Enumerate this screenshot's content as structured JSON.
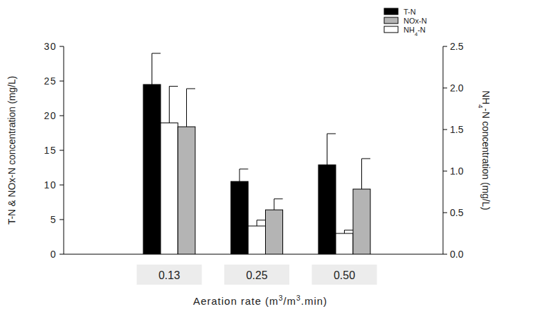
{
  "chart_data": {
    "type": "bar",
    "categories": [
      "0.13",
      "0.25",
      "0.50"
    ],
    "x_label": "Aeration rate (m3/m3.min)",
    "y_label": "T-N & NOx-N concentration (mg/L)",
    "y2_label": "NH4-N concentration (mg/L)",
    "ylim": [
      0,
      30
    ],
    "yticks": [
      0,
      5,
      10,
      15,
      20,
      25,
      30
    ],
    "y2lim": [
      0,
      2.5
    ],
    "y2ticks": [
      {
        "value": 0,
        "label": "0.0"
      },
      0.5,
      {
        "value": 1,
        "label": "1.0"
      },
      1.5,
      {
        "value": 2,
        "label": "2.0"
      },
      2.5
    ],
    "legend": "top-right",
    "grid": false,
    "series": [
      {
        "name": "T-N",
        "color": "#000000",
        "values": [
          24.5,
          10.5,
          12.9
        ],
        "errors": [
          4.5,
          1.8,
          4.5
        ]
      },
      {
        "name": "NOx-N",
        "color": "#b4b4b4",
        "values": [
          18.4,
          6.4,
          9.4
        ],
        "errors": [
          5.5,
          1.6,
          4.4
        ]
      },
      {
        "name": "NH4-N",
        "color": "#ffffff",
        "axis": "y2",
        "values": [
          1.58,
          0.34,
          0.25
        ],
        "errors": [
          0.44,
          0.07,
          0.04
        ]
      }
    ]
  }
}
